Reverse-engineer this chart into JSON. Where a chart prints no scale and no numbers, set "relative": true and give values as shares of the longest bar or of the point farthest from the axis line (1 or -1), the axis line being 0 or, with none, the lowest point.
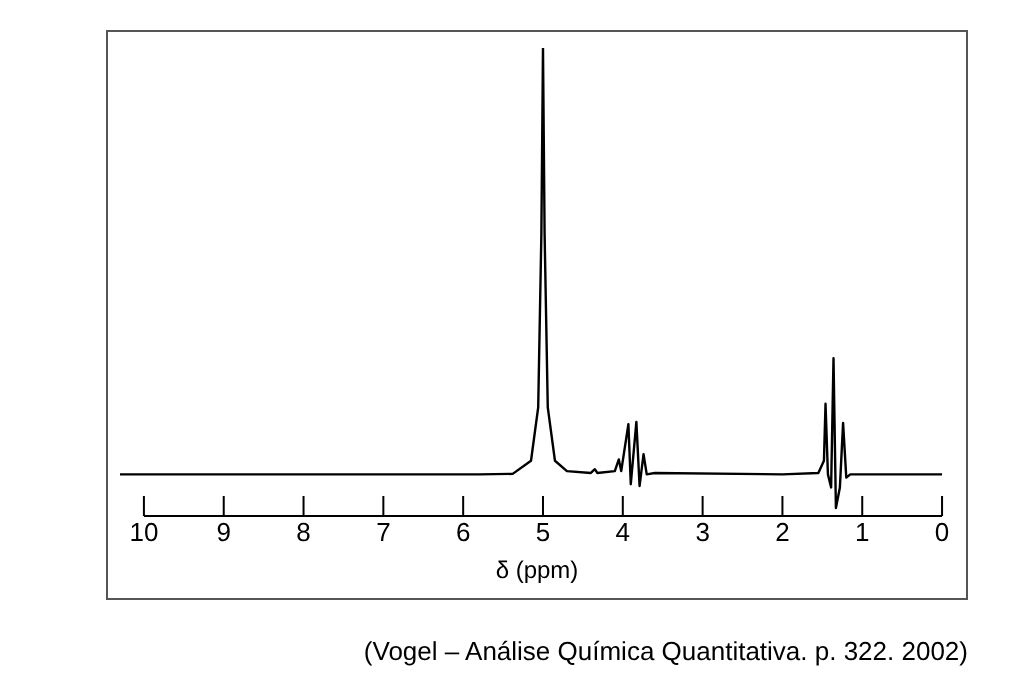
{
  "chart_data": {
    "type": "line",
    "relative": true,
    "xlabel": "δ (ppm)",
    "xlim": [
      10.45,
      -0.3
    ],
    "xticks": [
      10,
      9,
      8,
      7,
      6,
      5,
      4,
      3,
      2,
      1,
      0
    ],
    "marker": "none",
    "grid": false,
    "legend": false,
    "x": [
      10.3,
      5.8,
      5.38,
      5.15,
      5.06,
      5.02,
      5.0,
      4.98,
      4.94,
      4.85,
      4.7,
      4.4,
      4.35,
      4.32,
      4.1,
      4.05,
      4.02,
      3.93,
      3.9,
      3.83,
      3.79,
      3.74,
      3.7,
      3.6,
      2.0,
      1.55,
      1.48,
      1.46,
      1.43,
      1.39,
      1.36,
      1.33,
      1.28,
      1.24,
      1.2,
      1.15,
      0.95,
      0.0
    ],
    "series": [
      {
        "color": "#000000",
        "values": [
          0.089,
          0.089,
          0.09,
          0.118,
          0.232,
          0.605,
          1.0,
          0.605,
          0.232,
          0.118,
          0.096,
          0.092,
          0.1,
          0.092,
          0.096,
          0.121,
          0.096,
          0.196,
          0.068,
          0.201,
          0.064,
          0.132,
          0.089,
          0.092,
          0.089,
          0.092,
          0.118,
          0.24,
          0.089,
          0.061,
          0.337,
          0.017,
          0.061,
          0.199,
          0.082,
          0.089,
          0.089,
          0.089
        ]
      }
    ],
    "annotations": [
      "(Vogel – Análise Química Quantitativa. p. 322. 2002)"
    ]
  }
}
